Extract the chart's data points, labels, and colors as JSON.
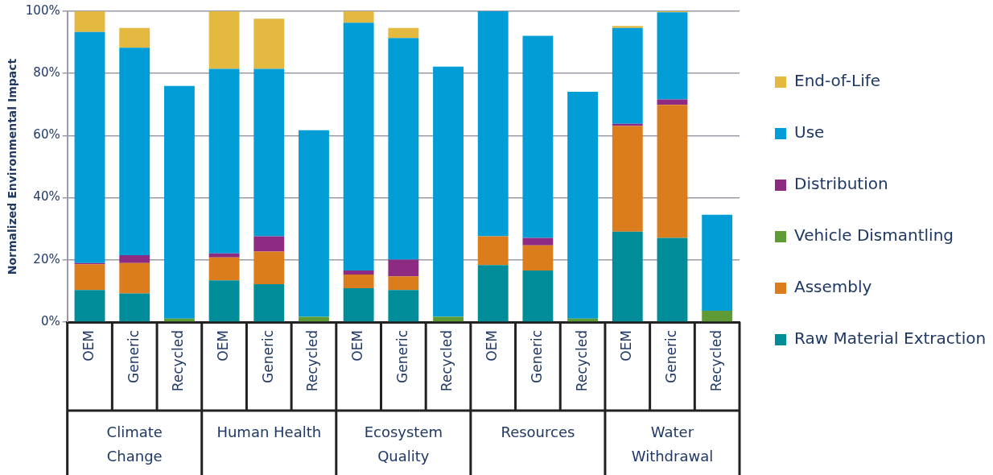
{
  "chart_data": {
    "type": "bar",
    "stacked": true,
    "ylabel": "Normalized Environmental Impact",
    "categories": [
      "OEM",
      "Generic",
      "Recycled",
      "OEM",
      "Generic",
      "Recycled",
      "OEM",
      "Generic",
      "Recycled",
      "OEM",
      "Generic",
      "Recycled",
      "OEM",
      "Generic",
      "Recycled"
    ],
    "annotations": [
      "Climate Change",
      "Human Health",
      "Ecosystem Quality",
      "Resources",
      "Water Withdrawal"
    ],
    "series": [
      {
        "name": "Raw Material Extraction",
        "color": "#008c99",
        "values": [
          10.3,
          9.2,
          0,
          13.4,
          12.2,
          0,
          10.9,
          10.3,
          0,
          18.3,
          16.6,
          0,
          29.1,
          27.1,
          0
        ]
      },
      {
        "name": "Assembly",
        "color": "#db7d1c",
        "values": [
          8.3,
          9.8,
          0,
          7.4,
          10.5,
          0,
          4.4,
          4.4,
          0,
          9.3,
          8.1,
          0,
          34,
          42.8,
          0
        ]
      },
      {
        "name": "Vehicle Dismantling",
        "color": "#5f9b35",
        "values": [
          0,
          0,
          1.1,
          0,
          0,
          1.7,
          0,
          0,
          1.7,
          0,
          0,
          1.1,
          0,
          0,
          3.6
        ]
      },
      {
        "name": "Distribution",
        "color": "#8d2b82",
        "values": [
          0.4,
          2.5,
          0,
          1.3,
          4.9,
          0,
          1.3,
          5.4,
          0,
          0,
          2.4,
          0,
          0.7,
          1.7,
          0
        ]
      },
      {
        "name": "Use",
        "color": "#009dd6",
        "values": [
          74.3,
          66.8,
          74.9,
          59.4,
          53.9,
          60,
          79.7,
          71.3,
          80.5,
          72.4,
          65,
          73,
          30.8,
          28.1,
          30.9
        ]
      },
      {
        "name": "End-of-Life",
        "color": "#e3b93f",
        "values": [
          6.7,
          6.3,
          0,
          18.5,
          16.1,
          0,
          3.7,
          3.2,
          0,
          0,
          0,
          0,
          0.7,
          0.3,
          0
        ]
      }
    ],
    "ylim": [
      0,
      100
    ],
    "yticks": [
      {
        "value": 0,
        "label": "0%"
      },
      {
        "value": 20,
        "label": "20%"
      },
      {
        "value": 40,
        "label": "40%"
      },
      {
        "value": 60,
        "label": "60%"
      },
      {
        "value": 80,
        "label": "80%"
      },
      {
        "value": 100,
        "label": "100%"
      }
    ],
    "grid": "y",
    "legend": "right"
  }
}
